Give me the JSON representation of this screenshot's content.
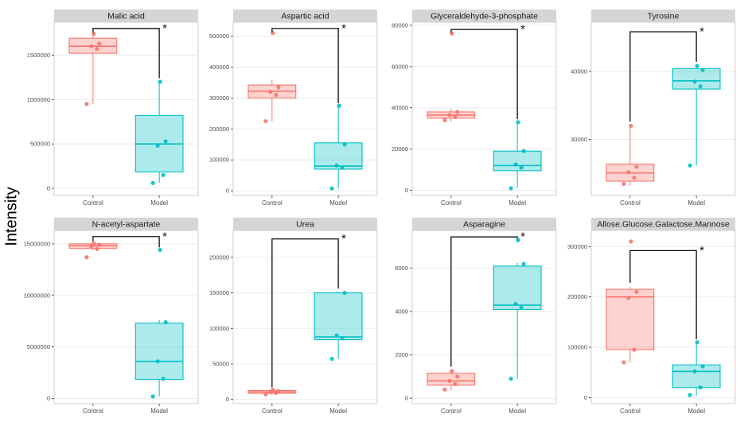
{
  "ylabel": "Intensity",
  "groups": [
    "Control",
    "Model"
  ],
  "colors": {
    "control": "#F8766D",
    "model": "#00BFC4",
    "strip_bg": "#D5D5D5",
    "strip_text": "#1a1a1a",
    "panel_border": "#CFCFCF",
    "grid": "#EBEBEB",
    "axis_text": "#4d4d4d",
    "bracket": "#111111"
  },
  "chart_data": [
    {
      "type": "box",
      "title": "Malic acid",
      "ylim": [
        -80000,
        1870000
      ],
      "yticks": [
        0,
        500000,
        1000000,
        1500000
      ],
      "series": [
        {
          "name": "Control",
          "whisker_low": 950000,
          "q1": 1520000,
          "median": 1600000,
          "q3": 1690000,
          "whisker_high": 1740000,
          "points": [
            950000,
            1570000,
            1600000,
            1630000,
            1740000
          ]
        },
        {
          "name": "Model",
          "whisker_low": 60000,
          "q1": 185000,
          "median": 500000,
          "q3": 820000,
          "whisker_high": 1200000,
          "points": [
            60000,
            150000,
            480000,
            530000,
            1200000
          ]
        }
      ],
      "sig": {
        "label": "*",
        "y": 1800000,
        "left_from": 1755000,
        "right_from": 1240000
      }
    },
    {
      "type": "box",
      "title": "Aspartic acid",
      "ylim": [
        -15000,
        545000
      ],
      "yticks": [
        0,
        100000,
        200000,
        300000,
        400000,
        500000
      ],
      "series": [
        {
          "name": "Control",
          "whisker_low": 225000,
          "q1": 300000,
          "median": 322000,
          "q3": 342000,
          "whisker_high": 360000,
          "points": [
            225000,
            310000,
            320000,
            335000,
            510000
          ]
        },
        {
          "name": "Model",
          "whisker_low": 8000,
          "q1": 70000,
          "median": 80000,
          "q3": 155000,
          "whisker_high": 275000,
          "points": [
            8000,
            75000,
            82000,
            150000,
            275000
          ]
        }
      ],
      "sig": {
        "label": "*",
        "y": 525000,
        "left_from": 513000,
        "right_from": 283000
      }
    },
    {
      "type": "box",
      "title": "Glyceraldehyde-3-phosphate",
      "ylim": [
        -2500,
        81500
      ],
      "yticks": [
        0,
        20000,
        40000,
        60000,
        80000
      ],
      "series": [
        {
          "name": "Control",
          "whisker_low": 33500,
          "q1": 35000,
          "median": 36500,
          "q3": 38000,
          "whisker_high": 39500,
          "points": [
            34000,
            35500,
            36500,
            38000,
            76000
          ]
        },
        {
          "name": "Model",
          "whisker_low": 1000,
          "q1": 9500,
          "median": 12000,
          "q3": 19000,
          "whisker_high": 33000,
          "points": [
            1000,
            11000,
            12500,
            19000,
            33000
          ]
        }
      ],
      "sig": {
        "label": "*",
        "y": 78000,
        "left_from": 76500,
        "right_from": 34500
      }
    },
    {
      "type": "box",
      "title": "Tyrosine",
      "ylim": [
        21800,
        47200
      ],
      "yticks": [
        30000,
        40000
      ],
      "series": [
        {
          "name": "Control",
          "whisker_low": 23200,
          "q1": 23900,
          "median": 25100,
          "q3": 26400,
          "whisker_high": 32000,
          "points": [
            23500,
            24400,
            25200,
            26000,
            32000
          ]
        },
        {
          "name": "Model",
          "whisker_low": 26200,
          "q1": 37400,
          "median": 38600,
          "q3": 40400,
          "whisker_high": 41000,
          "points": [
            26200,
            37800,
            38500,
            40200,
            40800
          ]
        }
      ],
      "sig": {
        "label": "*",
        "y": 45800,
        "left_from": 32600,
        "right_from": 41400
      }
    },
    {
      "type": "box",
      "title": "N-acetyl-aspartate",
      "ylim": [
        -500000,
        16300000
      ],
      "yticks": [
        0,
        5000000,
        10000000,
        15000000
      ],
      "series": [
        {
          "name": "Control",
          "whisker_low": 14350000,
          "q1": 14550000,
          "median": 14800000,
          "q3": 15000000,
          "whisker_high": 15100000,
          "points": [
            13700000,
            14500000,
            14750000,
            14900000,
            15050000
          ]
        },
        {
          "name": "Model",
          "whisker_low": 200000,
          "q1": 1850000,
          "median": 3600000,
          "q3": 7300000,
          "whisker_high": 7600000,
          "points": [
            200000,
            1900000,
            3600000,
            7400000,
            14400000
          ]
        }
      ],
      "sig": {
        "label": "*",
        "y": 15700000,
        "left_from": 15250000,
        "right_from": 14650000
      }
    },
    {
      "type": "box",
      "title": "Urea",
      "ylim": [
        -6000,
        238000
      ],
      "yticks": [
        0,
        50000,
        100000,
        150000,
        200000
      ],
      "series": [
        {
          "name": "Control",
          "whisker_low": 6500,
          "q1": 8500,
          "median": 10500,
          "q3": 12500,
          "whisker_high": 14000,
          "points": [
            7000,
            9000,
            10500,
            11500,
            13500
          ]
        },
        {
          "name": "Model",
          "whisker_low": 57000,
          "q1": 84000,
          "median": 88000,
          "q3": 150000,
          "whisker_high": 152000,
          "points": [
            57000,
            86000,
            90000,
            150000
          ]
        }
      ],
      "sig": {
        "label": "*",
        "y": 226000,
        "left_from": 17000,
        "right_from": 156000
      }
    },
    {
      "type": "box",
      "title": "Asparagine",
      "ylim": [
        -250,
        7750
      ],
      "yticks": [
        0,
        2000,
        4000,
        6000
      ],
      "series": [
        {
          "name": "Control",
          "whisker_low": 350,
          "q1": 600,
          "median": 800,
          "q3": 1150,
          "whisker_high": 1300,
          "points": [
            400,
            650,
            800,
            1000,
            1250
          ]
        },
        {
          "name": "Model",
          "whisker_low": 900,
          "q1": 4100,
          "median": 4300,
          "q3": 6100,
          "whisker_high": 6250,
          "points": [
            900,
            4200,
            4350,
            6200,
            7300
          ]
        }
      ],
      "sig": {
        "label": "*",
        "y": 7450,
        "left_from": 1450,
        "right_from": 7380
      }
    },
    {
      "type": "box",
      "title": "Allose.Glucose.Galactose.Mannose",
      "ylim": [
        -12000,
        332000
      ],
      "yticks": [
        0,
        100000,
        200000,
        300000
      ],
      "series": [
        {
          "name": "Control",
          "whisker_low": 70000,
          "q1": 95000,
          "median": 200000,
          "q3": 215000,
          "whisker_high": 220000,
          "points": [
            70000,
            95000,
            198000,
            210000,
            310000
          ]
        },
        {
          "name": "Model",
          "whisker_low": 4000,
          "q1": 20000,
          "median": 52000,
          "q3": 65000,
          "whisker_high": 110000,
          "points": [
            5000,
            20000,
            52000,
            62000,
            110000
          ]
        }
      ],
      "sig": {
        "label": "*",
        "y": 292000,
        "left_from": 228000,
        "right_from": 116000
      }
    }
  ]
}
